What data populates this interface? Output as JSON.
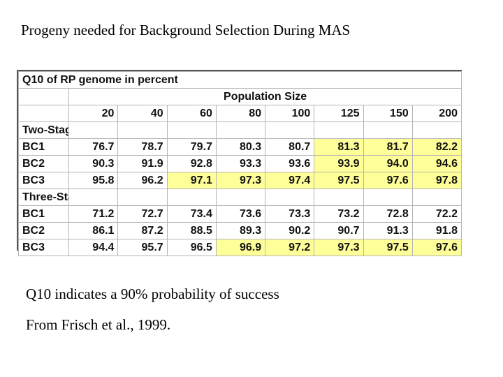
{
  "title": "Progeny needed for Background Selection During MAS",
  "table": {
    "header": "Q10 of RP genome in percent",
    "population_label": "Population Size",
    "columns": [
      "20",
      "40",
      "60",
      "80",
      "100",
      "125",
      "150",
      "200"
    ],
    "sections": [
      {
        "name": "Two-Stage",
        "rows": [
          {
            "label": "BC1",
            "values": [
              "76.7",
              "78.7",
              "79.7",
              "80.3",
              "80.7",
              "81.3",
              "81.7",
              "82.2"
            ],
            "highlighted": [
              false,
              false,
              false,
              false,
              false,
              true,
              true,
              true
            ]
          },
          {
            "label": "BC2",
            "values": [
              "90.3",
              "91.9",
              "92.8",
              "93.3",
              "93.6",
              "93.9",
              "94.0",
              "94.6"
            ],
            "highlighted": [
              false,
              false,
              false,
              false,
              false,
              true,
              true,
              true
            ]
          },
          {
            "label": "BC3",
            "values": [
              "95.8",
              "96.2",
              "97.1",
              "97.3",
              "97.4",
              "97.5",
              "97.6",
              "97.8"
            ],
            "highlighted": [
              false,
              false,
              true,
              true,
              true,
              true,
              true,
              true
            ]
          }
        ]
      },
      {
        "name": "Three-Stage",
        "rows": [
          {
            "label": "BC1",
            "values": [
              "71.2",
              "72.7",
              "73.4",
              "73.6",
              "73.3",
              "73.2",
              "72.8",
              "72.2"
            ],
            "highlighted": [
              false,
              false,
              false,
              false,
              false,
              false,
              false,
              false
            ]
          },
          {
            "label": "BC2",
            "values": [
              "86.1",
              "87.2",
              "88.5",
              "89.3",
              "90.2",
              "90.7",
              "91.3",
              "91.8"
            ],
            "highlighted": [
              false,
              false,
              false,
              false,
              false,
              false,
              false,
              false
            ]
          },
          {
            "label": "BC3",
            "values": [
              "94.4",
              "95.7",
              "96.5",
              "96.9",
              "97.2",
              "97.3",
              "97.5",
              "97.6"
            ],
            "highlighted": [
              false,
              false,
              false,
              true,
              true,
              true,
              true,
              true
            ]
          }
        ]
      }
    ],
    "highlight_color": "#ffff99"
  },
  "notes": [
    "Q10 indicates a 90% probability of success",
    "From Frisch et al., 1999."
  ]
}
